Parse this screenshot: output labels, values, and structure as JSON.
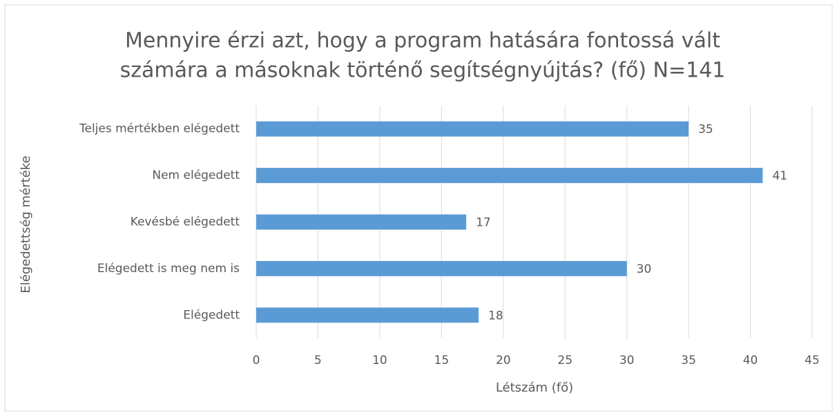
{
  "chart_data": {
    "type": "bar",
    "orientation": "horizontal",
    "title": [
      "Mennyire érzi azt, hogy a program hatására fontossá vált",
      "számára a másoknak történő segítségnyújtás? (fő) N=141"
    ],
    "x_label": "Létszám (fő)",
    "y_label": "Elégedettség mértéke",
    "categories": [
      "Teljes mértékben elégedett",
      "Nem elégedett",
      "Kevésbé elégedett",
      "Elégedett is meg nem is",
      "Elégedett"
    ],
    "values": [
      35,
      41,
      17,
      30,
      18
    ],
    "color": "#5b9bd5",
    "xlim": [
      0,
      45
    ],
    "xticks": [
      0,
      5,
      10,
      15,
      20,
      25,
      30,
      35,
      40,
      45
    ],
    "grid": true
  }
}
